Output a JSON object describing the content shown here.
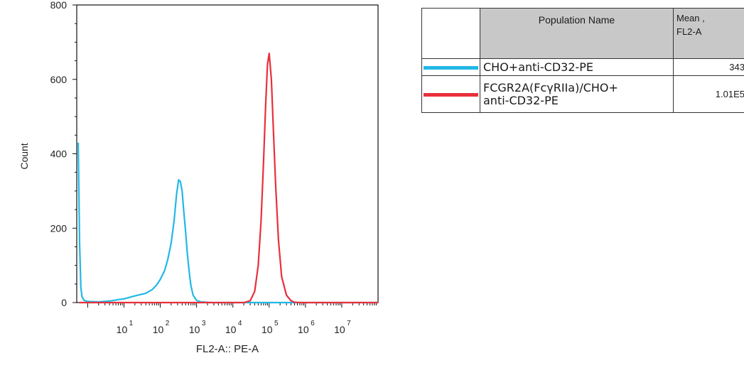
{
  "chart_data": {
    "type": "area",
    "x_scale": "log",
    "xlabel": "FL2-A:: PE-A",
    "ylabel": "Count",
    "xlim": [
      0.5,
      100000000.0
    ],
    "ylim": [
      0,
      800
    ],
    "y_ticks": [
      "0",
      "200",
      "400",
      "600",
      "800"
    ],
    "x_ticks": [
      {
        "base": "10",
        "exp": "1",
        "value": 10
      },
      {
        "base": "10",
        "exp": "2",
        "value": 100
      },
      {
        "base": "10",
        "exp": "3",
        "value": 1000
      },
      {
        "base": "10",
        "exp": "4",
        "value": 10000
      },
      {
        "base": "10",
        "exp": "5",
        "value": 100000
      },
      {
        "base": "10",
        "exp": "6",
        "value": 1000000
      },
      {
        "base": "10",
        "exp": "7",
        "value": 10000000
      }
    ],
    "grid": false,
    "series": [
      {
        "name": "CHO+anti-CD32-PE",
        "color": "#22b8e6",
        "x": [
          0.55,
          0.6,
          0.65,
          0.7,
          0.8,
          1,
          2,
          4,
          7,
          10,
          20,
          40,
          60,
          80,
          100,
          130,
          160,
          200,
          240,
          280,
          320,
          360,
          400,
          440,
          500,
          560,
          630,
          700,
          800,
          1000,
          1300,
          1800,
          2500,
          5000,
          20000,
          100000.0,
          1000000.0,
          100000000.0
        ],
        "y": [
          430,
          160,
          40,
          15,
          6,
          3,
          2,
          4,
          8,
          10,
          18,
          25,
          35,
          48,
          62,
          85,
          115,
          160,
          220,
          290,
          330,
          325,
          300,
          250,
          190,
          130,
          80,
          45,
          20,
          6,
          2,
          1,
          0,
          0,
          0,
          0,
          0,
          0
        ]
      },
      {
        "name": "FCGR2A(FcγRIIa)/CHO+ anti-CD32-PE",
        "color": "#e8303a",
        "x": [
          0.6,
          50,
          20000,
          30000,
          40000,
          50000,
          60000,
          70000,
          80000,
          90000,
          100000,
          115000,
          130000,
          150000,
          180000,
          220000,
          300000,
          400000,
          500000,
          700000,
          100000000.0
        ],
        "y": [
          0,
          0,
          0,
          5,
          30,
          100,
          220,
          380,
          530,
          640,
          670,
          600,
          470,
          320,
          170,
          70,
          20,
          5,
          1,
          0,
          0
        ]
      }
    ]
  },
  "legend_table": {
    "header": {
      "name": "Population Name",
      "mean": "Mean ,\nFL2-A"
    },
    "rows": [
      {
        "name": "CHO+anti-CD32-PE",
        "mean": "343",
        "color": "#22b8e6"
      },
      {
        "name": "FCGR2A(FcγRIIa)/CHO+\nanti-CD32-PE",
        "mean": "1.01E5",
        "color": "#e8303a"
      }
    ]
  }
}
